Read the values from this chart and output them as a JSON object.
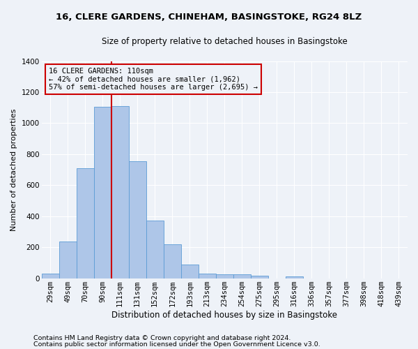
{
  "title1": "16, CLERE GARDENS, CHINEHAM, BASINGSTOKE, RG24 8LZ",
  "title2": "Size of property relative to detached houses in Basingstoke",
  "xlabel": "Distribution of detached houses by size in Basingstoke",
  "ylabel": "Number of detached properties",
  "footer1": "Contains HM Land Registry data © Crown copyright and database right 2024.",
  "footer2": "Contains public sector information licensed under the Open Government Licence v3.0.",
  "bin_labels": [
    "29sqm",
    "49sqm",
    "70sqm",
    "90sqm",
    "111sqm",
    "131sqm",
    "152sqm",
    "172sqm",
    "193sqm",
    "213sqm",
    "234sqm",
    "254sqm",
    "275sqm",
    "295sqm",
    "316sqm",
    "336sqm",
    "357sqm",
    "377sqm",
    "398sqm",
    "418sqm",
    "439sqm"
  ],
  "bar_values": [
    30,
    235,
    710,
    1105,
    1110,
    755,
    370,
    220,
    90,
    30,
    25,
    25,
    15,
    0,
    10,
    0,
    0,
    0,
    0,
    0,
    0
  ],
  "bar_color": "#aec6e8",
  "bar_edge_color": "#5b9bd5",
  "vline_color": "#cc0000",
  "vline_x": 3.5,
  "annotation_line1": "16 CLERE GARDENS: 110sqm",
  "annotation_line2": "← 42% of detached houses are smaller (1,962)",
  "annotation_line3": "57% of semi-detached houses are larger (2,695) →",
  "box_color": "#cc0000",
  "ylim": [
    0,
    1400
  ],
  "yticks": [
    0,
    200,
    400,
    600,
    800,
    1000,
    1200,
    1400
  ],
  "bg_color": "#eef2f8",
  "grid_color": "#ffffff",
  "title1_fontsize": 9.5,
  "title2_fontsize": 8.5,
  "xlabel_fontsize": 8.5,
  "ylabel_fontsize": 8,
  "tick_fontsize": 7.5,
  "footer_fontsize": 6.8,
  "annot_fontsize": 7.5
}
